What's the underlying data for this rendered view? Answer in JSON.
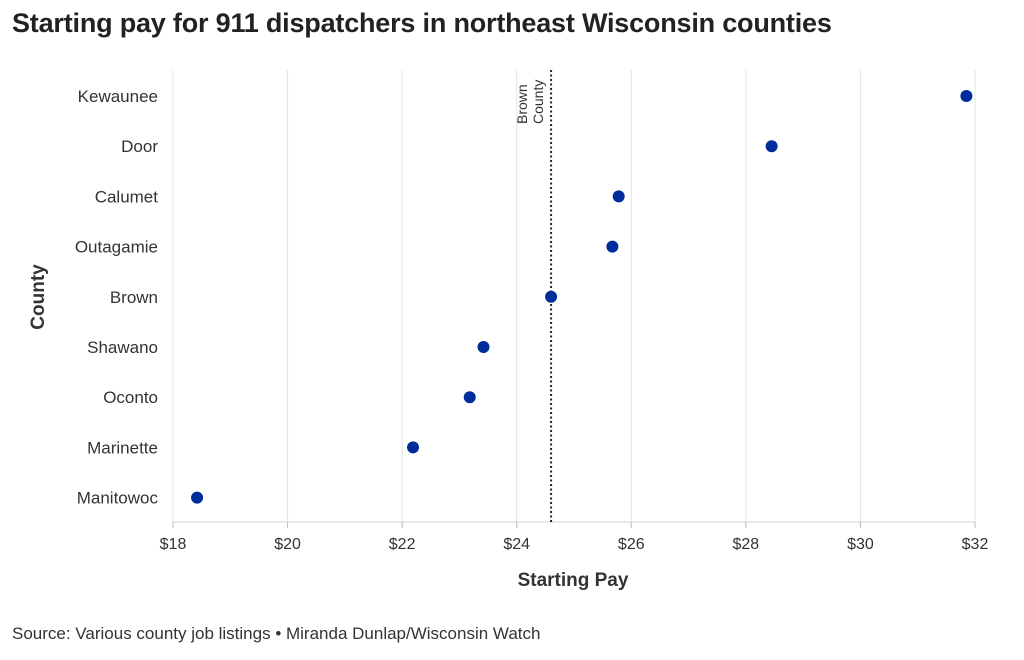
{
  "title": "Starting pay for 911 dispatchers in northeast Wisconsin counties",
  "source": "Source: Various county job listings • Miranda Dunlap/Wisconsin Watch",
  "colors": {
    "dot": "#002d9c",
    "grid": "#e4e4e4",
    "text": "#333333",
    "reference_line": "#222222"
  },
  "chart_data": {
    "type": "scatter",
    "xlabel": "Starting Pay",
    "ylabel": "County",
    "xlim": [
      18,
      32
    ],
    "x_ticks": [
      {
        "value": 18,
        "label": "$18"
      },
      {
        "value": 20,
        "label": "$20"
      },
      {
        "value": 22,
        "label": "$22"
      },
      {
        "value": 24,
        "label": "$24"
      },
      {
        "value": 26,
        "label": "$26"
      },
      {
        "value": 28,
        "label": "$28"
      },
      {
        "value": 30,
        "label": "$30"
      },
      {
        "value": 32,
        "label": "$32"
      }
    ],
    "categories": [
      "Kewaunee",
      "Door",
      "Calumet",
      "Outagamie",
      "Brown",
      "Shawano",
      "Oconto",
      "Marinette",
      "Manitowoc"
    ],
    "values": [
      31.85,
      28.45,
      25.78,
      25.67,
      24.6,
      23.42,
      23.18,
      22.19,
      18.42
    ],
    "reference_line": {
      "value": 24.6,
      "label_lines": [
        "Brown",
        "County"
      ],
      "style": "dotted"
    },
    "grid": "vertical"
  }
}
